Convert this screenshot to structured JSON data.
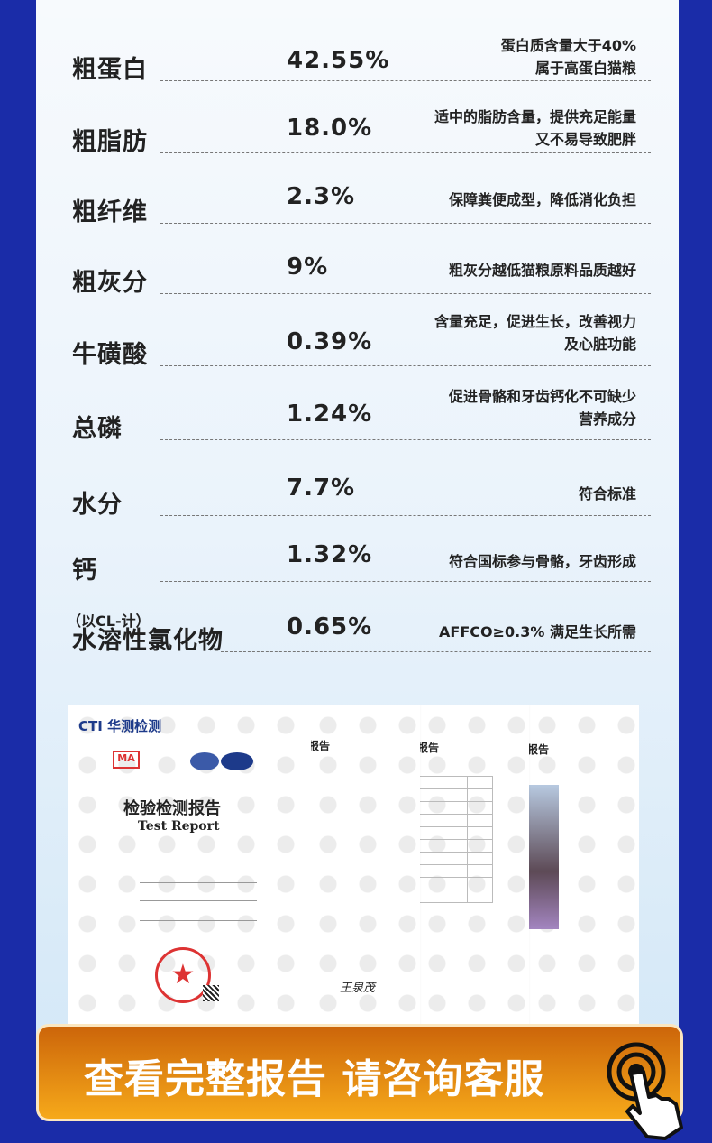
{
  "nutrients": [
    {
      "name": "粗蛋白",
      "value": "42.55%",
      "desc": [
        "蛋白质含量大于40%",
        "属于高蛋白猫粮"
      ]
    },
    {
      "name": "粗脂肪",
      "value": "18.0%",
      "desc": [
        "适中的脂肪含量，提供充足能量",
        "又不易导致肥胖"
      ]
    },
    {
      "name": "粗纤维",
      "value": "2.3%",
      "desc": [
        "保障粪便成型，降低消化负担"
      ]
    },
    {
      "name": "粗灰分",
      "value": "9%",
      "desc": [
        "粗灰分越低猫粮原料品质越好"
      ]
    },
    {
      "name": "牛磺酸",
      "value": "0.39%",
      "desc": [
        "含量充足，促进生长，改善视力",
        "及心脏功能"
      ]
    },
    {
      "name": "总磷",
      "value": "1.24%",
      "desc": [
        "促进骨骼和牙齿钙化不可缺少",
        "营养成分"
      ]
    },
    {
      "name": "水分",
      "value": "7.7%",
      "desc": [
        "符合标准"
      ]
    },
    {
      "name": "钙",
      "value": "1.32%",
      "desc": [
        "符合国标参与骨骼，牙齿形成"
      ]
    },
    {
      "name": "水溶性氯化物",
      "sub": "（以CL-计）",
      "value": "0.65%",
      "desc": [
        "AFFCO≥0.3% 满足生长所需"
      ]
    }
  ],
  "report": {
    "brand": "华测检测",
    "brand_logo": "CTI",
    "title_cn": "检验检测报告",
    "title_en": "Test Report",
    "page_heading": "报告",
    "signature": "王泉茂"
  },
  "cta": {
    "label": "查看完整报告 请咨询客服",
    "icon": "tap-hand-icon"
  },
  "colors": {
    "background": "#1a2ca8",
    "button": "#e88a12"
  }
}
